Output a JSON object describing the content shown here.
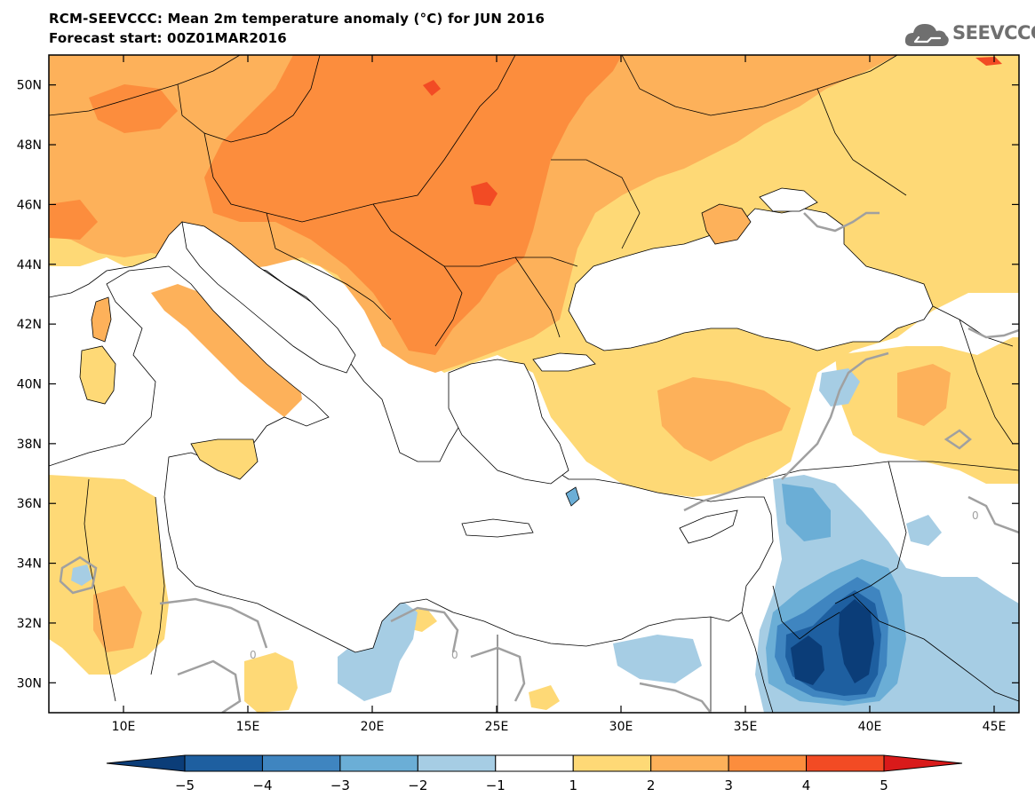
{
  "header": {
    "title": "RCM-SEEVCCC: Mean 2m temperature anomaly (°C) for JUN 2016",
    "subtitle": "Forecast start: 00Z01MAR2016"
  },
  "logo": {
    "text": "SEEVCCC",
    "icon": "cloud-icon",
    "color": "#6f6f6f"
  },
  "map": {
    "variable": "Mean 2m temperature anomaly",
    "units": "°C",
    "month": "JUN 2016",
    "lon_range": [
      7,
      46
    ],
    "lat_range": [
      29,
      51
    ],
    "lat_ticks": [
      "30N",
      "32N",
      "34N",
      "36N",
      "38N",
      "40N",
      "42N",
      "44N",
      "46N",
      "48N",
      "50N"
    ],
    "lon_ticks": [
      "10E",
      "15E",
      "20E",
      "25E",
      "30E",
      "35E",
      "40E",
      "45E"
    ],
    "contour_label": "0",
    "colors": {
      "land_gt3": "#fc8d3d",
      "land_gt4": "#f24b24",
      "land_gt5": "#d91a1a",
      "land_gt2": "#fdb15a",
      "land_gt1": "#fed976",
      "neutral": "#ffffff",
      "lt_m1": "#a6cde4",
      "lt_m2": "#6baed6",
      "lt_m3": "#3f85c0",
      "lt_m4": "#1e5fa0",
      "lt_m5": "#0b3d78",
      "zero_contour": "#a0a0a0"
    }
  },
  "colorbar": {
    "labels": [
      "−5",
      "−4",
      "−3",
      "−2",
      "−1",
      "1",
      "2",
      "3",
      "4",
      "5"
    ],
    "colors": [
      "#0b3d78",
      "#1e5fa0",
      "#3f85c0",
      "#6baed6",
      "#a6cde4",
      "#ffffff",
      "#fed976",
      "#fdb15a",
      "#fc8d3d",
      "#f24b24",
      "#d91a1a"
    ]
  }
}
